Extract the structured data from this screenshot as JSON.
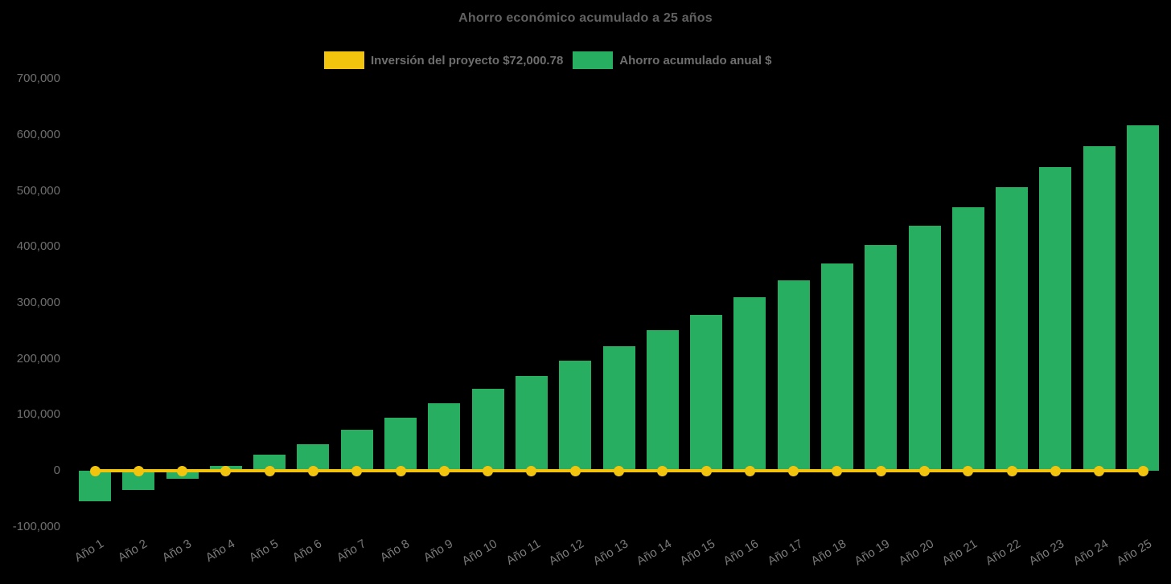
{
  "page": {
    "background": "#000000"
  },
  "chart_data": {
    "type": "bar",
    "title": "Ahorro económico acumulado a 25 años",
    "xlabel": "",
    "ylabel": "",
    "legend_position": "top",
    "grid": false,
    "background": "#000000",
    "categories": [
      "Año 1",
      "Año 2",
      "Año 3",
      "Año 4",
      "Año 5",
      "Año 6",
      "Año 7",
      "Año 8",
      "Año 9",
      "Año 10",
      "Año 11",
      "Año 12",
      "Año 13",
      "Año 14",
      "Año 15",
      "Año 16",
      "Año 17",
      "Año 18",
      "Año 19",
      "Año 20",
      "Año 21",
      "Año 22",
      "Año 23",
      "Año 24",
      "Año 25"
    ],
    "series": [
      {
        "name": "Inversión del proyecto $72,000.78",
        "type": "line",
        "color": "#F2C40E",
        "marker": "circle",
        "constant_value": 0
      },
      {
        "name": "Ahorro acumulado anual $",
        "type": "bar",
        "color": "#27AE60",
        "values": [
          -55000,
          -34000,
          -14000,
          8000,
          28000,
          48000,
          73000,
          95000,
          120000,
          146000,
          170000,
          196000,
          223000,
          251000,
          278000,
          310000,
          340000,
          370000,
          403000,
          437000,
          470000,
          506000,
          542000,
          579000,
          617000
        ]
      }
    ],
    "ylim": [
      -100000,
      700000
    ],
    "y_ticks": [
      {
        "label": "700,000",
        "value": 700000
      },
      {
        "label": "600,000",
        "value": 600000
      },
      {
        "label": "500,000",
        "value": 500000
      },
      {
        "label": "400,000",
        "value": 400000
      },
      {
        "label": "300,000",
        "value": 300000
      },
      {
        "label": "200,000",
        "value": 200000
      },
      {
        "label": "100,000",
        "value": 100000
      },
      {
        "label": "0",
        "value": 0
      },
      {
        "label": "-100,000",
        "value": -100000
      }
    ]
  }
}
